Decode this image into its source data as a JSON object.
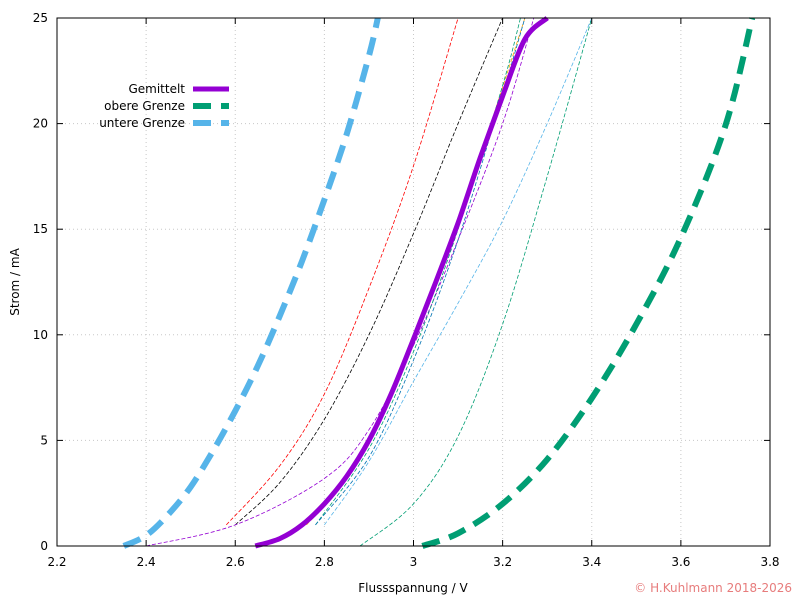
{
  "chart_data": {
    "type": "line",
    "xlabel": "Flussspannung / V",
    "ylabel": "Strom / mA",
    "xlim": [
      2.2,
      3.8
    ],
    "ylim": [
      0,
      25
    ],
    "x_ticks": [
      "2.2",
      "2.4",
      "2.6",
      "2.8",
      "3",
      "3.2",
      "3.4",
      "3.6",
      "3.8"
    ],
    "y_ticks": [
      "0",
      "5",
      "10",
      "15",
      "20",
      "25"
    ],
    "grid": true,
    "legend_position": "top-left",
    "copyright": "© H.Kuhlmann 2018-2026",
    "copyright_color": "#e77c7c",
    "series": [
      {
        "name": "Gemittelt",
        "color": "#9400d3",
        "style": "solid",
        "emphasis": "thick",
        "x": [
          2.645,
          2.7,
          2.75,
          2.8,
          2.85,
          2.9,
          2.95,
          3.0,
          3.05,
          3.1,
          3.15,
          3.2,
          3.25,
          3.3
        ],
        "y": [
          0.0,
          0.35,
          1.0,
          2.0,
          3.3,
          5.0,
          7.2,
          9.8,
          12.5,
          15.3,
          18.4,
          21.3,
          24.0,
          25.0
        ]
      },
      {
        "name": "obere Grenze",
        "color": "#009e73",
        "style": "dashed",
        "emphasis": "thick",
        "x": [
          3.02,
          3.1,
          3.2,
          3.3,
          3.4,
          3.5,
          3.6,
          3.7,
          3.76
        ],
        "y": [
          0.0,
          0.6,
          2.0,
          4.1,
          7.0,
          10.5,
          14.6,
          19.9,
          25.0
        ]
      },
      {
        "name": "untere Grenze",
        "color": "#56b4e9",
        "style": "dashed",
        "emphasis": "thick",
        "x": [
          2.35,
          2.4,
          2.45,
          2.5,
          2.55,
          2.6,
          2.65,
          2.7,
          2.75,
          2.8,
          2.85,
          2.9,
          2.92
        ],
        "y": [
          0.0,
          0.5,
          1.5,
          2.8,
          4.5,
          6.4,
          8.5,
          10.9,
          13.5,
          16.4,
          19.5,
          23.2,
          25.0
        ]
      },
      {
        "color": "#ff0000",
        "style": "dashed",
        "emphasis": "thin",
        "x": [
          2.58,
          2.7,
          2.8,
          2.9,
          3.0,
          3.1
        ],
        "y": [
          1.0,
          3.8,
          7.2,
          12.2,
          18.0,
          25.0
        ]
      },
      {
        "color": "#000000",
        "style": "dashed",
        "emphasis": "thin",
        "x": [
          2.6,
          2.7,
          2.8,
          2.9,
          3.0,
          3.1,
          3.2
        ],
        "y": [
          1.0,
          3.0,
          6.0,
          10.0,
          14.8,
          20.0,
          25.0
        ]
      },
      {
        "color": "#9400d3",
        "style": "dashed",
        "emphasis": "thin",
        "x": [
          2.4,
          2.6,
          2.8,
          2.9,
          3.0,
          3.1,
          3.2,
          3.27
        ],
        "y": [
          0.0,
          1.0,
          3.2,
          5.5,
          9.5,
          14.5,
          20.0,
          25.0
        ]
      },
      {
        "color": "#ffa500",
        "style": "dashed",
        "emphasis": "thin",
        "x": [
          2.76,
          2.85,
          2.95,
          3.05,
          3.15,
          3.25
        ],
        "y": [
          1.0,
          3.2,
          7.3,
          12.5,
          18.5,
          25.0
        ]
      },
      {
        "color": "#009e73",
        "style": "dashed",
        "emphasis": "thin",
        "x": [
          2.78,
          2.9,
          3.0,
          3.1,
          3.2,
          3.24
        ],
        "y": [
          1.0,
          4.6,
          9.2,
          15.0,
          21.8,
          25.0
        ]
      },
      {
        "color": "#0072b2",
        "style": "dashed",
        "emphasis": "thin",
        "x": [
          2.78,
          2.9,
          3.0,
          3.1,
          3.2,
          3.25
        ],
        "y": [
          1.0,
          4.2,
          8.8,
          14.5,
          21.4,
          25.0
        ]
      },
      {
        "color": "#56b4e9",
        "style": "dashed",
        "emphasis": "thin",
        "x": [
          2.8,
          2.9,
          3.0,
          3.1,
          3.2,
          3.3,
          3.4
        ],
        "y": [
          1.0,
          4.0,
          7.8,
          11.5,
          15.4,
          20.0,
          25.0
        ]
      },
      {
        "color": "#009e73",
        "style": "dashed",
        "emphasis": "thin",
        "x": [
          2.88,
          3.0,
          3.1,
          3.2,
          3.3,
          3.4
        ],
        "y": [
          0.0,
          2.0,
          5.2,
          10.5,
          17.5,
          25.0
        ]
      }
    ]
  }
}
